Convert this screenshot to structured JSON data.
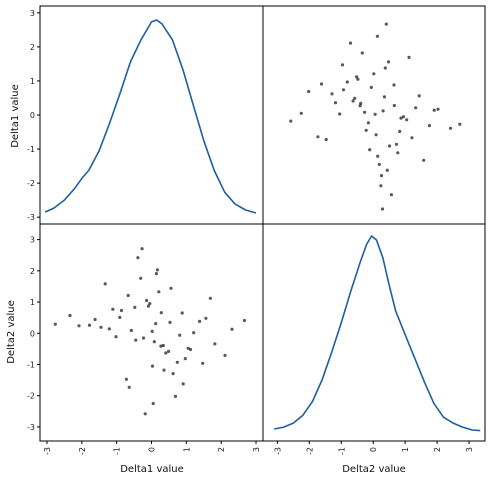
{
  "chart_data": {
    "type": "scatter",
    "kind": "scatter-matrix",
    "variables": [
      "Delta1 value",
      "Delta2 value"
    ],
    "axis_labels": {
      "x": [
        "Delta1 value",
        "Delta2 value"
      ],
      "y": [
        "Delta1 value",
        "Delta2 value"
      ]
    },
    "ranges": {
      "delta1": [
        -3.2,
        3.2
      ],
      "delta2": [
        -3.45,
        3.5
      ]
    },
    "ticks": [
      -3,
      -2,
      -1,
      0,
      1,
      2,
      3
    ],
    "tick_labels": [
      "-3",
      "-2",
      "-1",
      "0",
      "1",
      "2",
      "3"
    ],
    "diagonal": "kde",
    "kde": {
      "delta1": {
        "x": [
          -3.05,
          -2.8,
          -2.5,
          -2.2,
          -2.0,
          -1.8,
          -1.5,
          -1.2,
          -0.9,
          -0.6,
          -0.3,
          0.0,
          0.15,
          0.3,
          0.6,
          0.9,
          1.2,
          1.5,
          1.8,
          2.1,
          2.4,
          2.7,
          3.0
        ],
        "density": [
          0.01,
          0.03,
          0.07,
          0.13,
          0.18,
          0.22,
          0.32,
          0.46,
          0.61,
          0.77,
          0.88,
          0.97,
          0.98,
          0.96,
          0.88,
          0.73,
          0.55,
          0.37,
          0.22,
          0.11,
          0.05,
          0.02,
          0.005
        ]
      },
      "delta2": {
        "x": [
          -3.1,
          -2.8,
          -2.5,
          -2.2,
          -1.9,
          -1.6,
          -1.3,
          -1.0,
          -0.7,
          -0.4,
          -0.2,
          -0.05,
          0.1,
          0.3,
          0.5,
          0.7,
          0.9,
          1.1,
          1.3,
          1.6,
          1.9,
          2.2,
          2.5,
          2.8,
          3.1,
          3.35
        ],
        "density": [
          0.01,
          0.02,
          0.04,
          0.08,
          0.15,
          0.26,
          0.4,
          0.55,
          0.71,
          0.86,
          0.95,
          0.99,
          0.97,
          0.88,
          0.74,
          0.61,
          0.53,
          0.45,
          0.37,
          0.25,
          0.14,
          0.07,
          0.04,
          0.02,
          0.005,
          0.002
        ]
      }
    },
    "scatter_points": {
      "delta1": [
        0.12,
        -0.45,
        0.88,
        -1.21,
        0.03,
        1.56,
        -0.67,
        0.34,
        -0.09,
        2.11,
        -1.78,
        0.56,
        -0.23,
        0.91,
        -2.34,
        0.17,
        1.05,
        -0.58,
        -0.31,
        0.74,
        1.38,
        -1.02,
        0.05,
        -0.86,
        0.49,
        2.67,
        -0.14,
        0.62,
        -1.45,
        0.28,
        1.82,
        -0.39,
        0.97,
        -2.08,
        0.21,
        -0.72,
        1.21,
        -0.05,
        0.41,
        -1.33,
        0.69,
        2.31,
        -0.91,
        0.08,
        -0.27,
        1.47,
        -1.62,
        0.36,
        -0.48,
        0.81,
        -2.76,
        0.14,
        1.12,
        -0.64,
        0.53,
        -1.11,
        0.27,
        1.69,
        -0.18,
        0.02
      ],
      "delta2": [
        0.31,
        -0.22,
        0.65,
        0.14,
        -1.05,
        0.48,
        1.21,
        -0.39,
        0.87,
        -0.71,
        0.26,
        1.44,
        -0.15,
        -1.62,
        0.57,
        2.03,
        -0.48,
        0.09,
        1.76,
        -0.93,
        0.38,
        -0.11,
        -2.25,
        0.73,
        -0.58,
        0.41,
        1.05,
        -1.29,
        0.19,
        0.66,
        -0.34,
        2.42,
        -0.81,
        0.24,
        1.33,
        -1.47,
        0.02,
        0.95,
        -0.63,
        1.58,
        -2.02,
        0.13,
        0.51,
        -0.27,
        2.71,
        -0.96,
        0.44,
        -1.18,
        0.83,
        -0.06,
        0.29,
        1.91,
        -0.52,
        -1.73,
        0.35,
        0.77,
        -0.41,
        1.12,
        -2.58,
        0.06
      ]
    },
    "colors": {
      "kde_line": "#1f5f9e",
      "points": "#000000",
      "frame": "#000000"
    },
    "grid": false,
    "legend": "none"
  }
}
